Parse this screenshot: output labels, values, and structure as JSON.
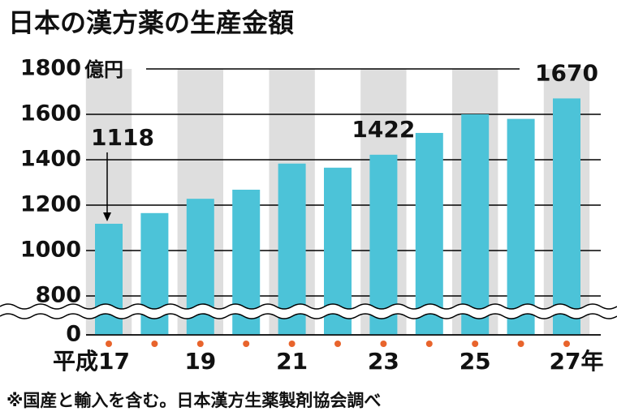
{
  "chart_data": {
    "type": "bar",
    "title": "日本の漢方薬の生産金額",
    "y_label": "億円",
    "categories": [
      "平成17",
      null,
      "19",
      null,
      "21",
      null,
      "23",
      null,
      "25",
      null,
      "27年"
    ],
    "values": [
      1118,
      1165,
      1228,
      1268,
      1383,
      1365,
      1422,
      1518,
      1600,
      1580,
      1670
    ],
    "color": "#4cc3d8",
    "ylim": [
      0,
      1800
    ],
    "yticks": [
      0,
      800,
      1000,
      1200,
      1400,
      1600,
      1800
    ],
    "axis_break": true,
    "grid": true,
    "note": "※国産と輸入を含む。日本漢方生薬製剤協会調べ"
  }
}
